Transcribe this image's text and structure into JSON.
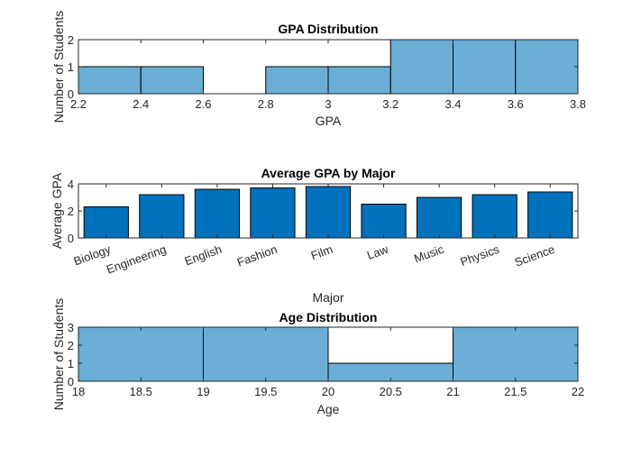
{
  "chart_data": [
    {
      "type": "bar",
      "title": "GPA Distribution",
      "xlabel": "GPA",
      "ylabel": "Number of Students",
      "bin_edges": [
        2.2,
        2.4,
        2.6,
        2.8,
        3.0,
        3.2,
        3.4,
        3.6,
        3.8
      ],
      "values": [
        1,
        1,
        0,
        1,
        1,
        2,
        2,
        2
      ],
      "xlim": [
        2.2,
        3.8
      ],
      "ylim": [
        0,
        2
      ],
      "xticks": [
        "2.2",
        "2.4",
        "2.6",
        "2.8",
        "3",
        "3.2",
        "3.4",
        "3.6",
        "3.8"
      ],
      "yticks": [
        "0",
        "1",
        "2"
      ],
      "bar_color": "#6aaed6",
      "grid": false
    },
    {
      "type": "bar",
      "title": "Average GPA by Major",
      "xlabel": "Major",
      "ylabel": "Average GPA",
      "categories": [
        "Biology",
        "Engineering",
        "English",
        "Fashion",
        "Film",
        "Law",
        "Music",
        "Physics",
        "Science"
      ],
      "values": [
        2.3,
        3.2,
        3.6,
        3.7,
        3.8,
        2.5,
        3.0,
        3.2,
        3.4
      ],
      "ylim": [
        0,
        4
      ],
      "yticks": [
        "0",
        "2",
        "4"
      ],
      "bar_color": "#0072bd",
      "grid": false
    },
    {
      "type": "bar",
      "title": "Age Distribution",
      "xlabel": "Age",
      "ylabel": "Number of Students",
      "bin_edges": [
        18,
        19,
        20,
        21,
        22
      ],
      "values": [
        3,
        3,
        1,
        3
      ],
      "xlim": [
        18,
        22
      ],
      "ylim": [
        0,
        3
      ],
      "xticks": [
        "18",
        "18.5",
        "19",
        "19.5",
        "20",
        "20.5",
        "21",
        "21.5",
        "22"
      ],
      "yticks": [
        "0",
        "1",
        "2",
        "3"
      ],
      "bar_color": "#6aaed6",
      "grid": false
    }
  ]
}
